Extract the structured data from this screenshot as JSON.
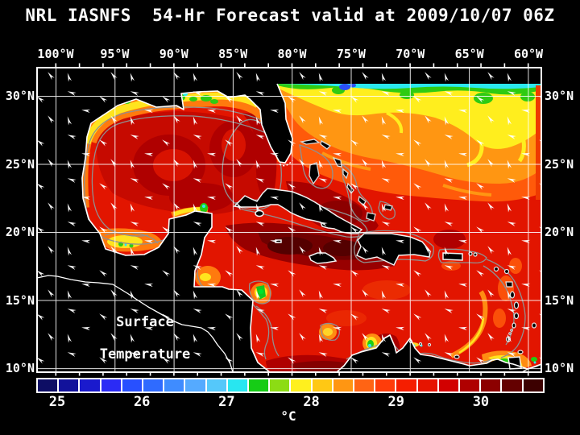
{
  "title": "NRL IASNFS  54-Hr Forecast valid at 2009/10/07 06Z",
  "map": {
    "lon_labels": [
      "100°W",
      "95°W",
      "90°W",
      "85°W",
      "80°W",
      "75°W",
      "70°W",
      "65°W",
      "60°W"
    ],
    "lat_labels": [
      "30°N",
      "25°N",
      "20°N",
      "15°N",
      "10°N"
    ],
    "overlay": {
      "line1": "Surface",
      "line2": "Temperature"
    }
  },
  "colorbar": {
    "tick_labels": [
      "25",
      "26",
      "27",
      "28",
      "29",
      "30"
    ],
    "unit": "°C",
    "cell_count": 24,
    "colors": [
      "#0D0D64",
      "#12129B",
      "#1A1ACD",
      "#2B2BF5",
      "#2850FF",
      "#2F6BFF",
      "#3F8CFF",
      "#55AAFF",
      "#55C8FA",
      "#28E6F0",
      "#16CC16",
      "#8CDC14",
      "#FFF01E",
      "#FFC814",
      "#FF9612",
      "#FF6414",
      "#FF3C0A",
      "#F51E00",
      "#E61400",
      "#D20000",
      "#AF0000",
      "#8C0000",
      "#640000",
      "#3C0000"
    ]
  },
  "colors": {
    "background": "#000000",
    "sea_base": "#E21500",
    "gridline": "#FFFFFF",
    "coastline": "#FFFFFF",
    "bathymetry_contour": "#909090",
    "wind_arrow": "#FFFFFF"
  }
}
